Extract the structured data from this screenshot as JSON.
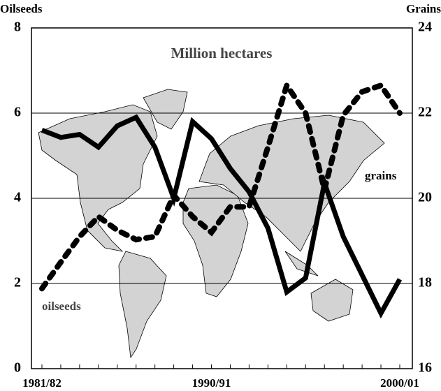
{
  "chart_data": {
    "type": "line",
    "y_label": "Oilseeds",
    "y2_label": "Grains",
    "annotations": [
      "Million hectares",
      "grains",
      "oilseeds"
    ],
    "categories": [
      "1981/82",
      null,
      null,
      null,
      null,
      null,
      null,
      null,
      null,
      "1990/91",
      null,
      null,
      null,
      null,
      null,
      null,
      null,
      null,
      null,
      "2000/01"
    ],
    "series": [
      {
        "name": "oilseeds",
        "color": "#000000",
        "style": "dashed",
        "axis": "y",
        "values": [
          1.88,
          2.5,
          3.1,
          3.57,
          3.25,
          3.03,
          3.1,
          4.07,
          3.57,
          3.2,
          3.8,
          3.8,
          5.2,
          6.65,
          6.0,
          4.2,
          5.95,
          6.5,
          6.65,
          6.0
        ]
      },
      {
        "name": "grains",
        "color": "#000000",
        "style": "solid",
        "axis": "y2",
        "values": [
          21.6,
          21.43,
          21.5,
          21.2,
          21.7,
          21.9,
          21.2,
          20.0,
          21.8,
          21.4,
          20.7,
          20.15,
          19.3,
          17.8,
          18.13,
          20.36,
          19.1,
          18.2,
          17.3,
          18.1
        ]
      }
    ],
    "ylim": [
      0,
      8
    ],
    "yticks": [
      0,
      2,
      4,
      6,
      8
    ],
    "y2lim": [
      16,
      24
    ],
    "y2ticks": [
      16,
      18,
      20,
      22,
      24
    ],
    "grid": true
  }
}
